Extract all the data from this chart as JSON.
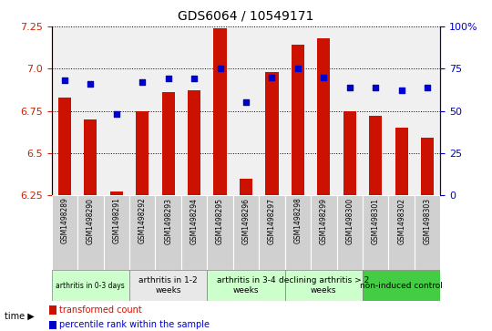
{
  "title": "GDS6064 / 10549171",
  "samples": [
    "GSM1498289",
    "GSM1498290",
    "GSM1498291",
    "GSM1498292",
    "GSM1498293",
    "GSM1498294",
    "GSM1498295",
    "GSM1498296",
    "GSM1498297",
    "GSM1498298",
    "GSM1498299",
    "GSM1498300",
    "GSM1498301",
    "GSM1498302",
    "GSM1498303"
  ],
  "transformed_count": [
    6.83,
    6.7,
    6.27,
    6.75,
    6.86,
    6.87,
    7.24,
    6.35,
    6.98,
    7.14,
    7.18,
    6.75,
    6.72,
    6.65,
    6.59
  ],
  "percentile_rank": [
    68,
    66,
    48,
    67,
    69,
    69,
    75,
    55,
    70,
    75,
    70,
    64,
    64,
    62,
    64
  ],
  "ylim_left": [
    6.25,
    7.25
  ],
  "ylim_right": [
    0,
    100
  ],
  "yticks_left": [
    6.25,
    6.5,
    6.75,
    7.0,
    7.25
  ],
  "yticks_right": [
    0,
    25,
    50,
    75,
    100
  ],
  "groups": [
    {
      "label": "arthritis in 0-3 days",
      "indices": [
        0,
        1,
        2
      ],
      "fc": "#ccffcc"
    },
    {
      "label": "arthritis in 1-2\nweeks",
      "indices": [
        3,
        4,
        5
      ],
      "fc": "#e8e8e8"
    },
    {
      "label": "arthritis in 3-4\nweeks",
      "indices": [
        6,
        7,
        8
      ],
      "fc": "#ccffcc"
    },
    {
      "label": "declining arthritis > 2\nweeks",
      "indices": [
        9,
        10,
        11
      ],
      "fc": "#e0ffe0"
    },
    {
      "label": "non-induced control",
      "indices": [
        12,
        13,
        14
      ],
      "fc": "#44cc44"
    }
  ],
  "bar_color": "#cc1100",
  "dot_color": "#0000cc",
  "legend_bar": "transformed count",
  "legend_dot": "percentile rank within the sample",
  "left_axis_color": "#cc2200",
  "right_axis_color": "#0000cc",
  "sample_box_color": "#d0d0d0"
}
